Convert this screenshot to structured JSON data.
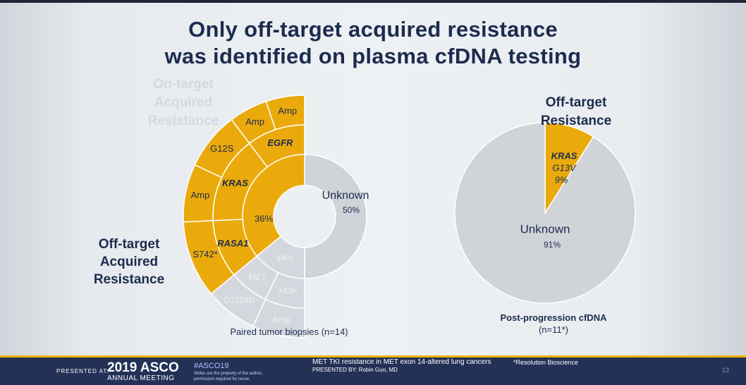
{
  "title": {
    "line1": "Only off-target acquired resistance",
    "line2": "was identified on plasma cfDNA testing"
  },
  "colors": {
    "offtarget": "#eaaa0c",
    "offtarget_stroke": "#ffffff",
    "ontarget_faded": "#d4d8de",
    "unknown": "#d0d3d8",
    "title": "#1d2b4f"
  },
  "left_chart": {
    "faded_label": "On-target Acquired Resistance",
    "offtarget_label": "Off-target Acquired Resistance",
    "caption": "Paired tumor biopsies (n=14)"
  },
  "right_chart": {
    "header": "Off-target Resistance",
    "caption_line1": "Post-progression cfDNA",
    "caption_line2": "(n=11*)"
  },
  "chart_data": [
    {
      "type": "sunburst",
      "caption": "Paired tumor biopsies (n=14)",
      "inner_ring": [
        {
          "label": "Unknown",
          "value": 50,
          "value_label": "50%",
          "group": "unknown"
        },
        {
          "label": "14%",
          "value": 14,
          "value_label": "14%",
          "group": "on-target"
        },
        {
          "label": "36%",
          "value": 36,
          "value_label": "36%",
          "group": "off-target"
        }
      ],
      "middle_ring": [
        {
          "label": "MET",
          "group": "on-target"
        },
        {
          "label": "HGF",
          "group": "on-target"
        },
        {
          "label": "EGFR",
          "group": "off-target"
        },
        {
          "label": "KRAS",
          "group": "off-target"
        },
        {
          "label": "RASA1",
          "group": "off-target"
        }
      ],
      "outer_ring": [
        {
          "label": "D1228N",
          "group": "on-target"
        },
        {
          "label": "Amp",
          "group": "on-target"
        },
        {
          "label": "Amp",
          "parent": "EGFR",
          "group": "off-target"
        },
        {
          "label": "Amp",
          "parent": "EGFR",
          "group": "off-target"
        },
        {
          "label": "G12S",
          "parent": "KRAS",
          "group": "off-target"
        },
        {
          "label": "Amp",
          "parent": "KRAS",
          "group": "off-target"
        },
        {
          "label": "S742*",
          "parent": "RASA1",
          "group": "off-target"
        }
      ]
    },
    {
      "type": "pie",
      "caption": "Post-progression cfDNA (n=11*)",
      "slices": [
        {
          "label": "KRAS G13V",
          "lines": [
            "KRAS",
            "G13V",
            "9%"
          ],
          "value": 9,
          "group": "off-target"
        },
        {
          "label": "Unknown",
          "lines": [
            "Unknown",
            "91%"
          ],
          "value": 91,
          "group": "unknown"
        }
      ]
    }
  ],
  "footer": {
    "presented_at": "PRESENTED AT:",
    "asco_logo": "2019 ASCO",
    "annual_meeting": "ANNUAL MEETING",
    "hashtag": "#ASCO19",
    "disclaimer_line1": "Slides are the property of the author,",
    "disclaimer_line2": "permission required for reuse.",
    "talk_title": "MET TKI resistance in MET exon 14-altered lung cancers",
    "presented_by": "PRESENTED BY: Robin Guo, MD",
    "footnote": "*Resolution Bioscience",
    "slide_number": "13"
  }
}
